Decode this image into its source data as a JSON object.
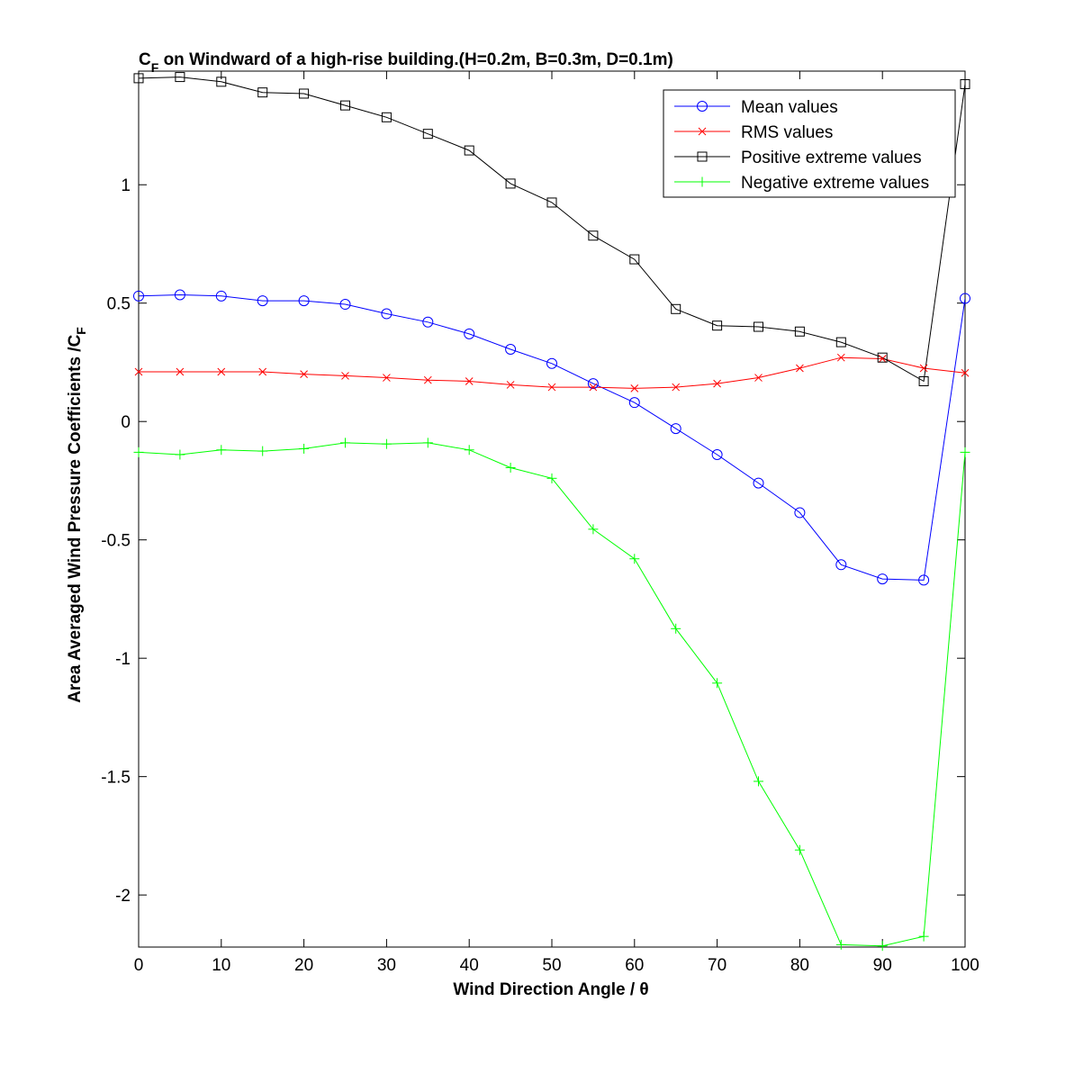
{
  "chart_data": {
    "type": "line",
    "title": {
      "main": "C",
      "sub": "F",
      "rest": " on Windward of a high-rise building.(H=0.2m, B=0.3m, D=0.1m)"
    },
    "xlabel": "Wind Direction Angle  / θ",
    "ylabel": {
      "main": "Area Averaged Wind Pressure Coefficients /C",
      "sub": "F"
    },
    "xlim": [
      0,
      100
    ],
    "ylim": [
      -2.22,
      1.48
    ],
    "xticks": [
      0,
      10,
      20,
      30,
      40,
      50,
      60,
      70,
      80,
      90,
      100
    ],
    "xtick_labels": [
      "0",
      "10",
      "20",
      "30",
      "40",
      "50",
      "60",
      "70",
      "80",
      "90",
      "100"
    ],
    "yticks": [
      -2,
      -1.5,
      -1,
      -0.5,
      0,
      0.5,
      1
    ],
    "ytick_labels": [
      "-2",
      "-1.5",
      "-1",
      "-0.5",
      "0",
      "0.5",
      "1"
    ],
    "grid": false,
    "legend_position": "top-right",
    "x": [
      0,
      5,
      10,
      15,
      20,
      25,
      30,
      35,
      40,
      45,
      50,
      55,
      60,
      65,
      70,
      75,
      80,
      85,
      90,
      95,
      100
    ],
    "series": [
      {
        "name": "Mean values",
        "color": "#0000ff",
        "marker": "circle",
        "values": [
          0.53,
          0.535,
          0.53,
          0.51,
          0.51,
          0.495,
          0.455,
          0.42,
          0.37,
          0.305,
          0.245,
          0.16,
          0.08,
          -0.03,
          -0.14,
          -0.26,
          -0.385,
          -0.605,
          -0.665,
          -0.67,
          0.52
        ]
      },
      {
        "name": "RMS values",
        "color": "#ff0000",
        "marker": "x",
        "values": [
          0.21,
          0.21,
          0.21,
          0.21,
          0.2,
          0.193,
          0.185,
          0.175,
          0.17,
          0.155,
          0.145,
          0.145,
          0.14,
          0.145,
          0.16,
          0.185,
          0.225,
          0.27,
          0.265,
          0.225,
          0.205
        ]
      },
      {
        "name": "Positive extreme values",
        "color": "#000000",
        "marker": "square",
        "values": [
          1.45,
          1.455,
          1.435,
          1.39,
          1.385,
          1.335,
          1.285,
          1.215,
          1.145,
          1.005,
          0.925,
          0.785,
          0.685,
          0.475,
          0.405,
          0.4,
          0.38,
          0.335,
          0.27,
          0.17,
          1.425
        ]
      },
      {
        "name": "Negative extreme values",
        "color": "#00ff00",
        "marker": "plus",
        "values": [
          -0.13,
          -0.14,
          -0.12,
          -0.125,
          -0.115,
          -0.09,
          -0.095,
          -0.09,
          -0.12,
          -0.195,
          -0.24,
          -0.455,
          -0.58,
          -0.875,
          -1.105,
          -1.52,
          -1.81,
          -2.21,
          -2.215,
          -2.175,
          -0.13
        ]
      }
    ]
  }
}
